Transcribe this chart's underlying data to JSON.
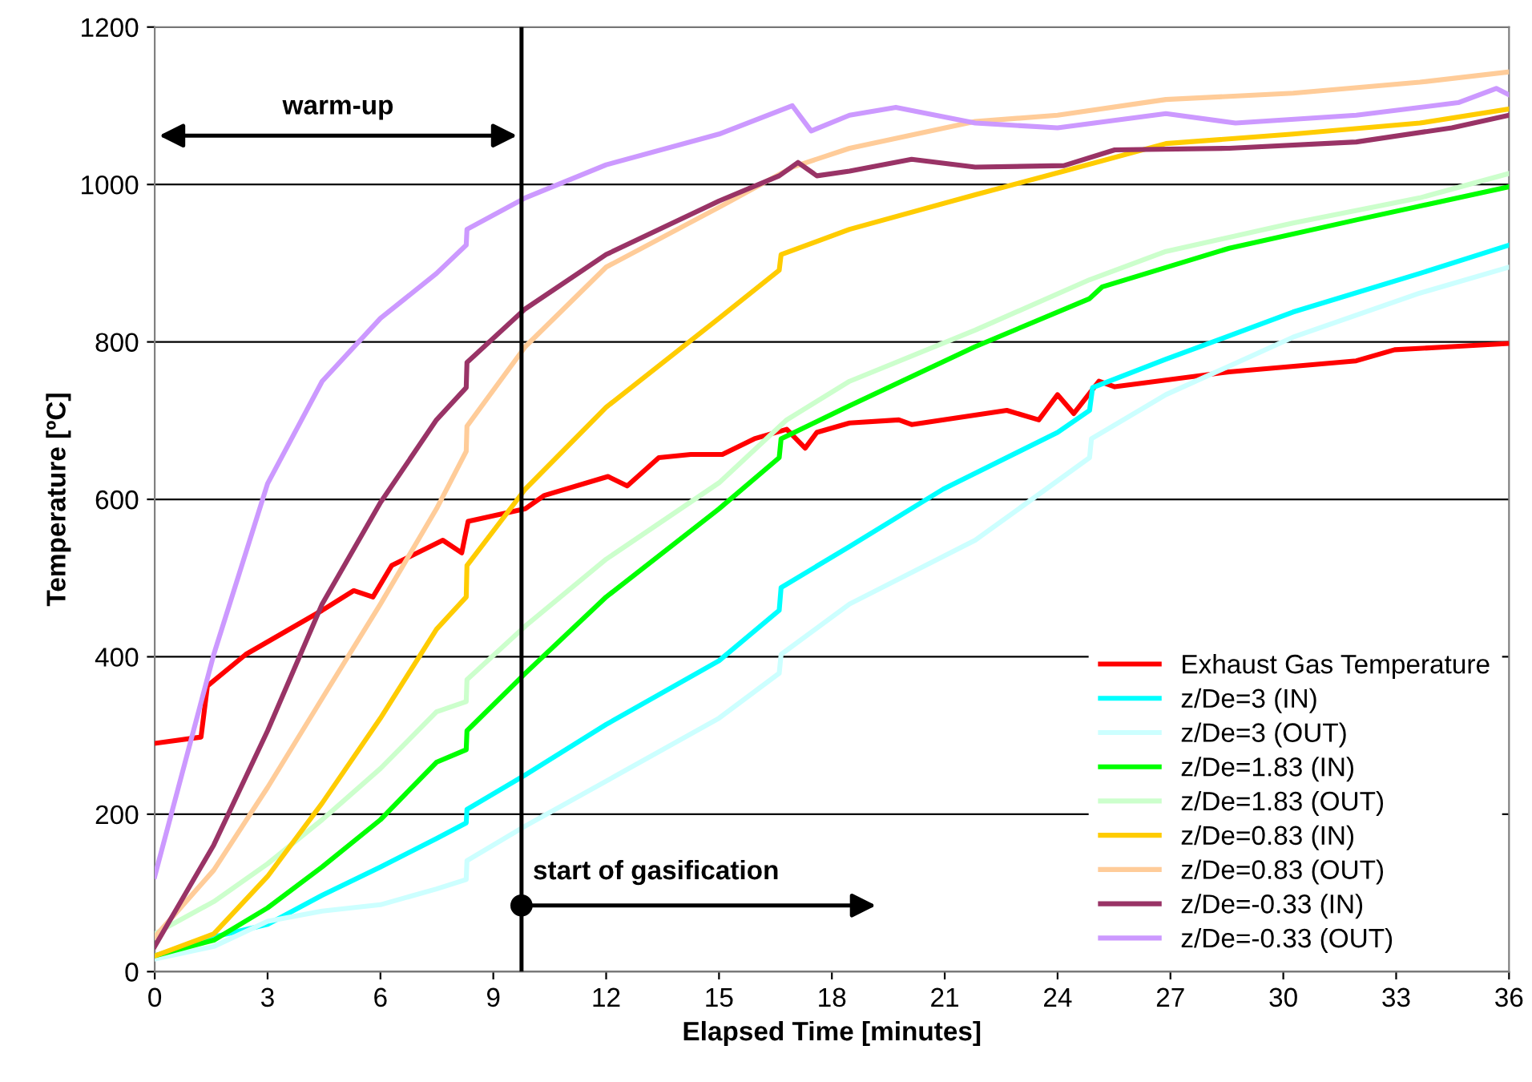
{
  "chart_data": {
    "type": "line",
    "xlabel": "Elapsed Time [minutes]",
    "ylabel": "Temperature [ºC]",
    "xlim": [
      0,
      36
    ],
    "ylim": [
      0,
      1200
    ],
    "xticks": [
      0,
      3,
      6,
      9,
      12,
      15,
      18,
      21,
      24,
      27,
      30,
      33,
      36
    ],
    "yticks": [
      0,
      200,
      400,
      600,
      800,
      1000,
      1200
    ],
    "grid": "y",
    "legend": "bottom right",
    "marker": "none",
    "line_style": "solid",
    "ref_lines": [
      {
        "axis": "x",
        "value": 9.75,
        "color": "#000000"
      }
    ],
    "annotations": [
      "warm-up",
      "start of gasification"
    ],
    "series": [
      {
        "name": "Exhaust Gas Temperature",
        "color": "#ff0000",
        "x": [
          0,
          1.23,
          1.4,
          2.42,
          4.45,
          5.29,
          5.8,
          6.3,
          7.66,
          8.16,
          8.33,
          9.85,
          10.36,
          12.05,
          12.56,
          13.4,
          14.25,
          15.09,
          15.94,
          16.8,
          17.29,
          17.6,
          18.47,
          19.78,
          20.12,
          22.65,
          23.5,
          24.0,
          24.43,
          25.1,
          25.52,
          28.56,
          31.94,
          32.96,
          34.48,
          36
        ],
        "values": [
          290,
          298,
          363,
          403,
          459,
          484,
          476,
          516,
          548,
          532,
          572,
          588,
          605,
          629,
          617,
          653,
          657,
          657,
          677,
          689,
          665,
          685,
          697,
          701,
          695,
          713,
          701,
          733,
          709,
          750,
          743,
          762,
          776,
          790,
          794,
          798
        ]
      },
      {
        "name": "z/De=3 (IN)",
        "color": "#00ffff",
        "x": [
          0,
          1.57,
          3.0,
          4.45,
          6.0,
          7.49,
          8.28,
          8.3,
          9.85,
          12.0,
          15.0,
          16.6,
          16.65,
          18.47,
          20.96,
          24.0,
          24.85,
          24.93,
          26.88,
          30.26,
          33.63,
          36
        ],
        "values": [
          20,
          44,
          60,
          97,
          133,
          169,
          189,
          206,
          250,
          314,
          395,
          459,
          488,
          540,
          613,
          685,
          713,
          742,
          778,
          838,
          887,
          923
        ]
      },
      {
        "name": "z/De=3 (OUT)",
        "color": "#ccffff",
        "x": [
          0,
          1.57,
          3.0,
          4.45,
          6.0,
          7.49,
          8.28,
          8.3,
          9.85,
          12.0,
          15.0,
          16.6,
          16.65,
          18.47,
          21.81,
          24.85,
          24.9,
          26.88,
          30.26,
          33.63,
          36
        ],
        "values": [
          16,
          32,
          64,
          77,
          85,
          105,
          117,
          141,
          185,
          242,
          322,
          379,
          403,
          467,
          548,
          653,
          677,
          733,
          806,
          862,
          895
        ]
      },
      {
        "name": "z/De=1.83 (IN)",
        "color": "#00ff00",
        "x": [
          0,
          1.57,
          3.0,
          4.45,
          6.0,
          7.49,
          8.28,
          8.3,
          9.85,
          12.0,
          15.0,
          16.6,
          16.65,
          18.47,
          21.81,
          24.85,
          25.19,
          28.56,
          31.94,
          36
        ],
        "values": [
          20,
          40,
          81,
          133,
          193,
          266,
          282,
          306,
          379,
          476,
          588,
          653,
          677,
          719,
          794,
          855,
          870,
          919,
          955,
          997
        ]
      },
      {
        "name": "z/De=1.83 (OUT)",
        "color": "#ccffcc",
        "x": [
          0,
          1.57,
          3.0,
          4.45,
          6.0,
          7.49,
          8.28,
          8.3,
          9.85,
          12.0,
          15.0,
          16.8,
          18.47,
          21.81,
          24.85,
          26.88,
          30.26,
          33.63,
          36
        ],
        "values": [
          48,
          89,
          137,
          193,
          258,
          330,
          343,
          371,
          439,
          524,
          621,
          701,
          750,
          815,
          879,
          915,
          951,
          983,
          1014
        ]
      },
      {
        "name": "z/De=0.83 (IN)",
        "color": "#ffcc00",
        "x": [
          0,
          1.57,
          3.0,
          4.45,
          6.0,
          7.49,
          8.28,
          8.3,
          9.85,
          12.0,
          15.0,
          16.6,
          16.65,
          18.47,
          21.81,
          24.17,
          26.88,
          30.26,
          33.63,
          36
        ],
        "values": [
          20,
          48,
          121,
          214,
          322,
          435,
          476,
          516,
          613,
          717,
          830,
          891,
          911,
          943,
          987,
          1017,
          1052,
          1064,
          1078,
          1096
        ]
      },
      {
        "name": "z/De=0.83 (OUT)",
        "color": "#ffcc99",
        "x": [
          0,
          1.57,
          3.0,
          4.45,
          6.0,
          7.49,
          8.28,
          8.3,
          9.85,
          12.0,
          15.0,
          16.95,
          18.47,
          21.81,
          24.0,
          26.88,
          30.26,
          33.63,
          36
        ],
        "values": [
          44,
          129,
          234,
          347,
          467,
          588,
          661,
          693,
          794,
          895,
          971,
          1022,
          1046,
          1080,
          1088,
          1108,
          1116,
          1130,
          1143
        ]
      },
      {
        "name": "z/De=-0.33 (IN)",
        "color": "#993366",
        "x": [
          0,
          1.57,
          3.0,
          4.45,
          6.0,
          7.49,
          8.28,
          8.3,
          9.85,
          12.0,
          15.0,
          16.6,
          17.1,
          17.6,
          18.47,
          20.12,
          21.81,
          24.17,
          25.52,
          28.56,
          31.94,
          34.48,
          36
        ],
        "values": [
          32,
          161,
          306,
          467,
          596,
          701,
          742,
          774,
          842,
          911,
          979,
          1011,
          1028,
          1011,
          1017,
          1032,
          1022,
          1024,
          1044,
          1046,
          1054,
          1072,
          1088
        ]
      },
      {
        "name": "z/De=-0.33 (OUT)",
        "color": "#cc99ff",
        "x": [
          0,
          1.57,
          3.0,
          4.45,
          6.0,
          7.49,
          8.28,
          8.3,
          9.85,
          12.0,
          15.0,
          16.95,
          17.45,
          18.47,
          19.7,
          21.81,
          24.0,
          26.88,
          28.73,
          31.94,
          34.65,
          35.66,
          36
        ],
        "values": [
          121,
          403,
          620,
          750,
          830,
          887,
          923,
          943,
          983,
          1025,
          1064,
          1100,
          1068,
          1088,
          1098,
          1078,
          1072,
          1090,
          1078,
          1088,
          1104,
          1122,
          1114
        ]
      }
    ]
  }
}
